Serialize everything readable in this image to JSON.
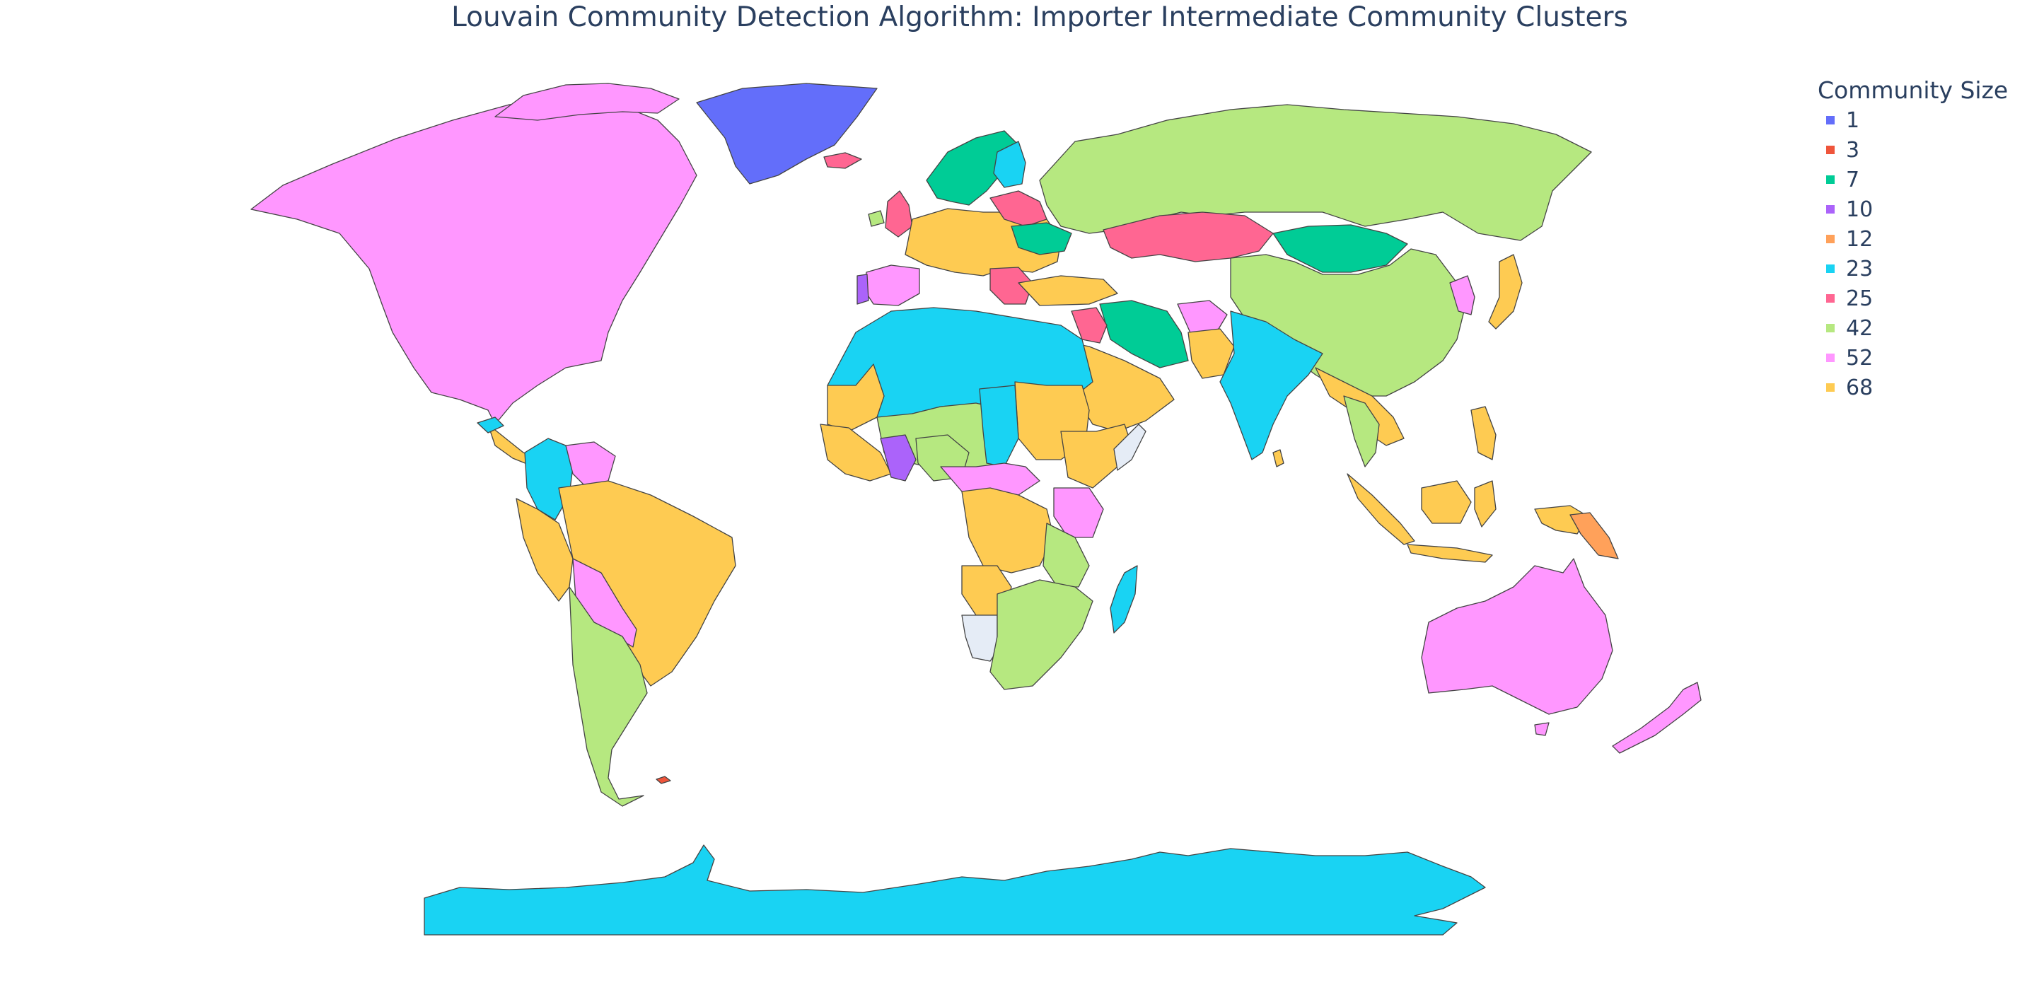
{
  "title": "Louvain Community Detection Algorithm: Importer Intermediate Community Clusters",
  "legend": {
    "title": "Community Size",
    "items": [
      {
        "label": "1",
        "color": "#636efa"
      },
      {
        "label": "3",
        "color": "#ef553b"
      },
      {
        "label": "7",
        "color": "#00cc96"
      },
      {
        "label": "10",
        "color": "#ab63fa"
      },
      {
        "label": "12",
        "color": "#ffa15a"
      },
      {
        "label": "23",
        "color": "#19d3f3"
      },
      {
        "label": "25",
        "color": "#ff6692"
      },
      {
        "label": "42",
        "color": "#b6e880"
      },
      {
        "label": "52",
        "color": "#ff97ff"
      },
      {
        "label": "68",
        "color": "#fecb52"
      }
    ]
  },
  "no_data_color": "#e5ecf6",
  "regions": [
    {
      "name": "Canada / USA / Mexico",
      "community_size": "52"
    },
    {
      "name": "Greenland",
      "community_size": "1"
    },
    {
      "name": "Iceland",
      "community_size": "25"
    },
    {
      "name": "Scandinavia",
      "community_size": "7"
    },
    {
      "name": "Finland",
      "community_size": "23"
    },
    {
      "name": "United Kingdom",
      "community_size": "25"
    },
    {
      "name": "Western Europe",
      "community_size": "68"
    },
    {
      "name": "Spain",
      "community_size": "52"
    },
    {
      "name": "Portugal",
      "community_size": "10"
    },
    {
      "name": "Russia",
      "community_size": "42"
    },
    {
      "name": "Kazakhstan",
      "community_size": "25"
    },
    {
      "name": "Mongolia",
      "community_size": "7"
    },
    {
      "name": "China",
      "community_size": "42"
    },
    {
      "name": "Japan",
      "community_size": "68"
    },
    {
      "name": "Korea",
      "community_size": "52"
    },
    {
      "name": "Iran",
      "community_size": "7"
    },
    {
      "name": "Middle East",
      "community_size": "68"
    },
    {
      "name": "India",
      "community_size": "23"
    },
    {
      "name": "Southeast Asia",
      "community_size": "68"
    },
    {
      "name": "Indonesia",
      "community_size": "68"
    },
    {
      "name": "Papua New Guinea",
      "community_size": "12"
    },
    {
      "name": "Australia",
      "community_size": "52"
    },
    {
      "name": "New Zealand",
      "community_size": "52"
    },
    {
      "name": "North Africa",
      "community_size": "23"
    },
    {
      "name": "West Africa",
      "community_size": "68"
    },
    {
      "name": "Sahel",
      "community_size": "42"
    },
    {
      "name": "Central Africa",
      "community_size": "68"
    },
    {
      "name": "East Africa",
      "community_size": "52"
    },
    {
      "name": "Southern Africa",
      "community_size": "42"
    },
    {
      "name": "Namibia",
      "community_size": "no data"
    },
    {
      "name": "Madagascar",
      "community_size": "23"
    },
    {
      "name": "Colombia",
      "community_size": "23"
    },
    {
      "name": "Venezuela",
      "community_size": "52"
    },
    {
      "name": "Brazil",
      "community_size": "68"
    },
    {
      "name": "Bolivia",
      "community_size": "52"
    },
    {
      "name": "Chile / Argentina",
      "community_size": "42"
    },
    {
      "name": "Antarctica",
      "community_size": "23"
    }
  ]
}
